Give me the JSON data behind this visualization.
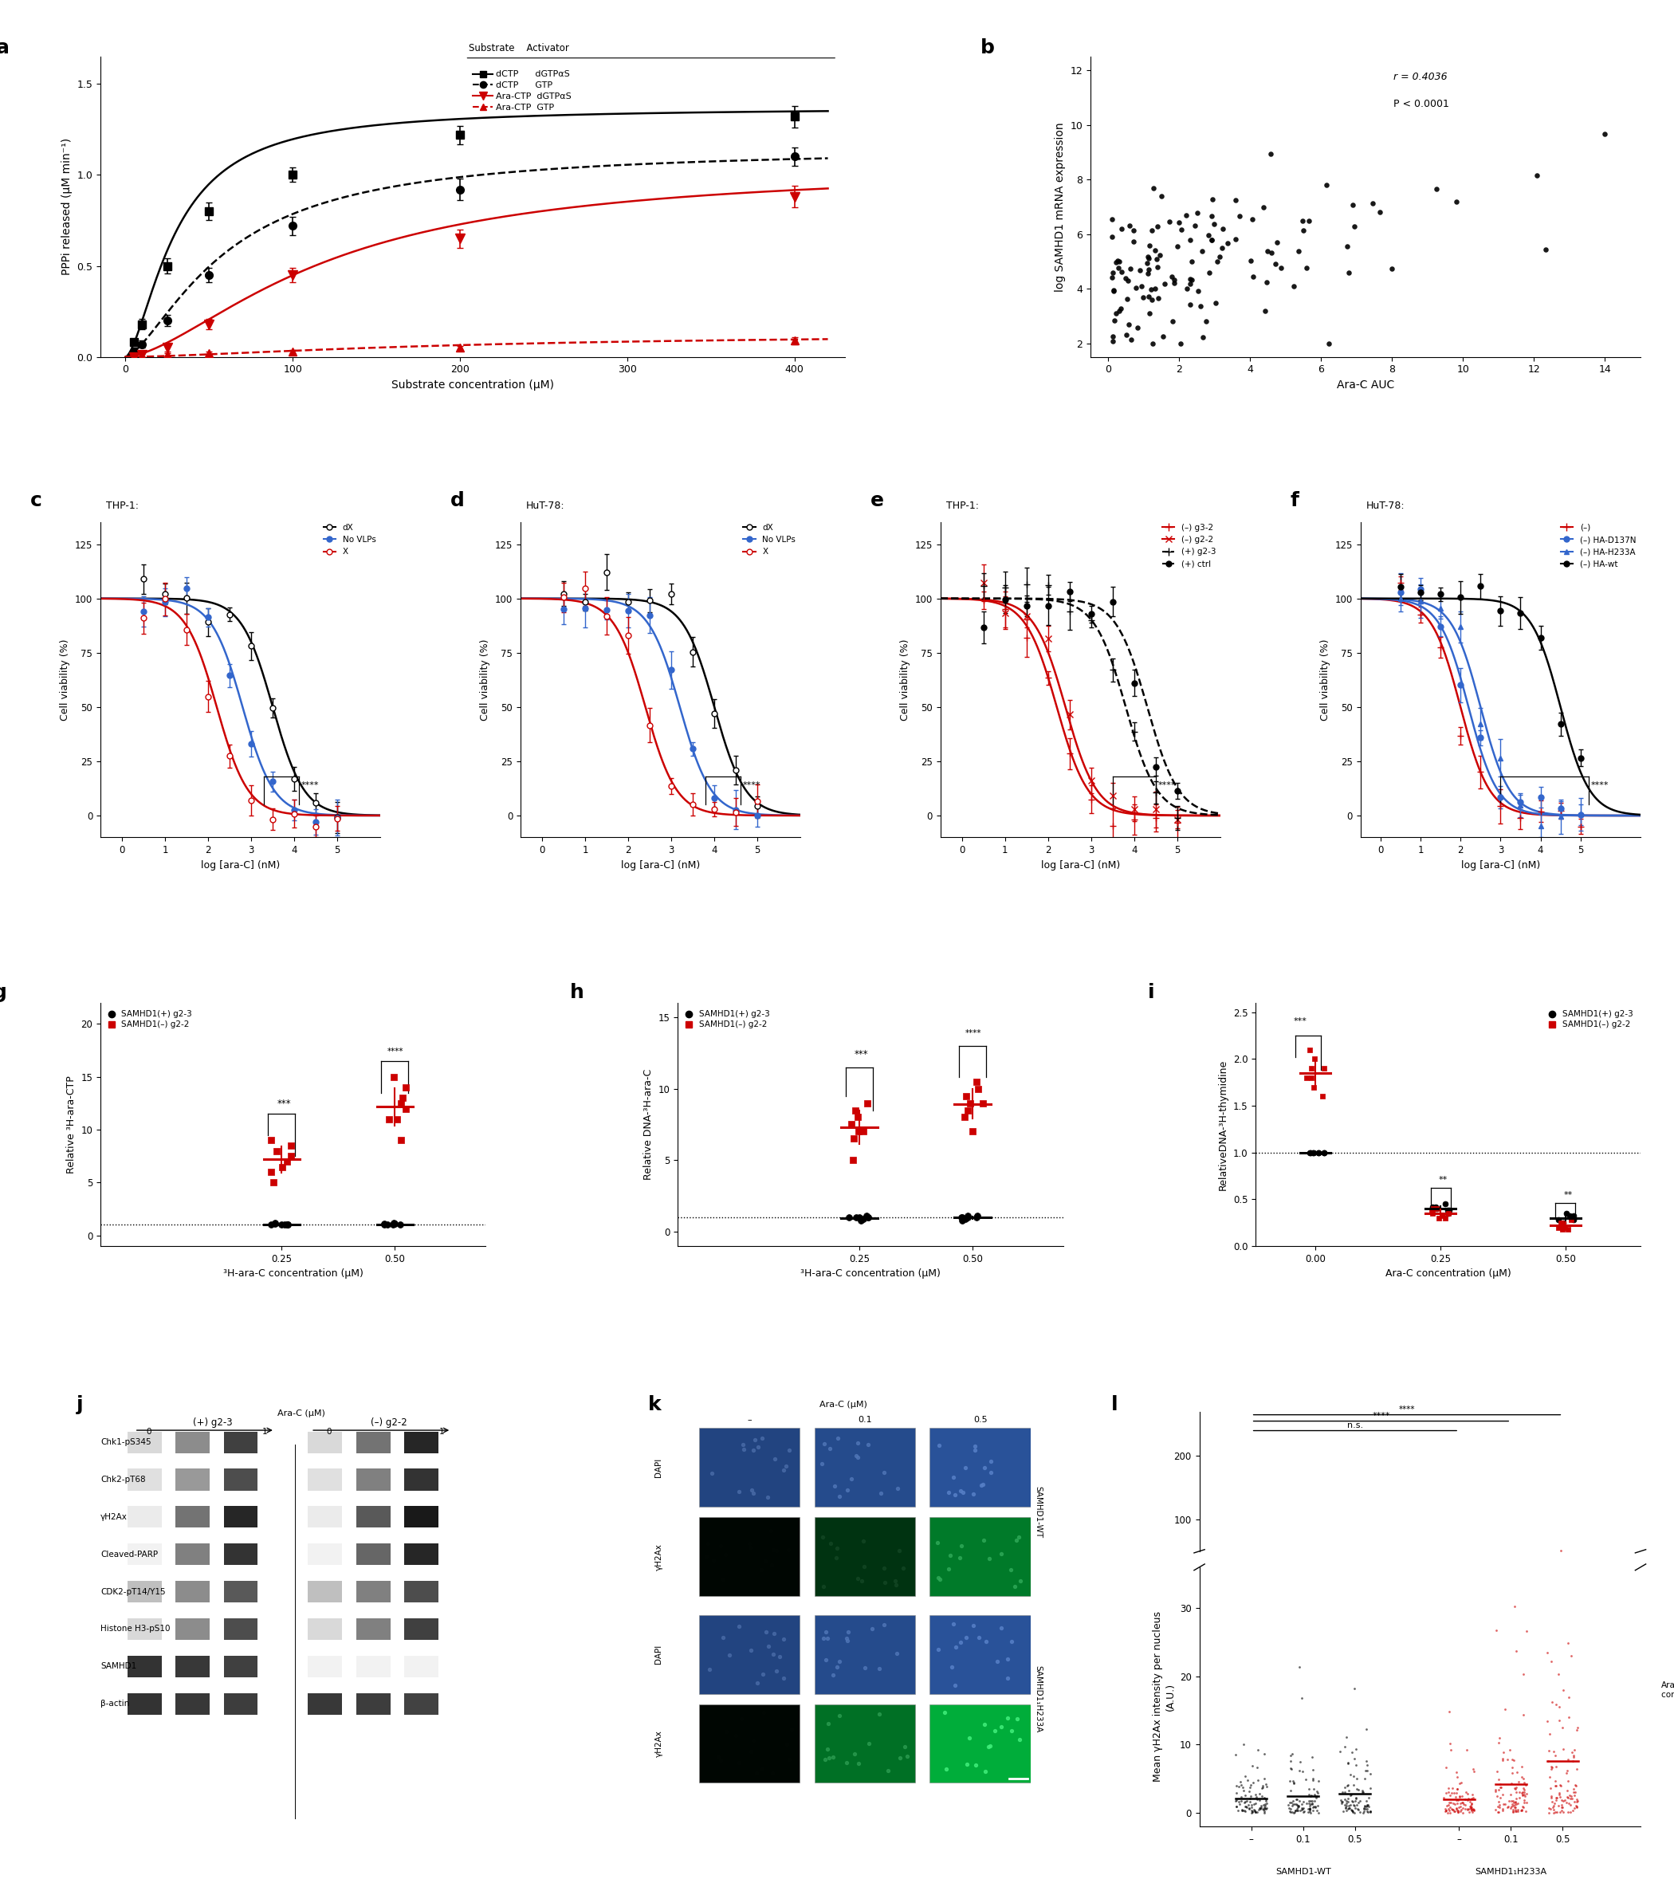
{
  "panel_a": {
    "xlabel": "Substrate concentration (μM)",
    "ylabel": "PPPi released (μM min⁻¹)",
    "xlim": [
      -15,
      430
    ],
    "ylim": [
      0.0,
      1.65
    ],
    "yticks": [
      0.0,
      0.5,
      1.0,
      1.5
    ],
    "xticks": [
      0,
      100,
      200,
      300,
      400
    ],
    "curves": {
      "dCTP_dGTPaS": {
        "x": [
          5,
          10,
          25,
          50,
          100,
          200,
          400
        ],
        "y": [
          0.08,
          0.18,
          0.5,
          0.8,
          1.0,
          1.22,
          1.32
        ],
        "yerr": [
          0.02,
          0.03,
          0.04,
          0.05,
          0.04,
          0.05,
          0.06
        ],
        "color": "black",
        "ls": "-",
        "marker": "s",
        "label": "dCTP      dGTPαS"
      },
      "dCTP_GTP": {
        "x": [
          5,
          10,
          25,
          50,
          100,
          200,
          400
        ],
        "y": [
          0.03,
          0.07,
          0.2,
          0.45,
          0.72,
          0.92,
          1.1
        ],
        "yerr": [
          0.02,
          0.02,
          0.03,
          0.04,
          0.05,
          0.06,
          0.05
        ],
        "color": "black",
        "ls": "--",
        "marker": "o",
        "label": "dCTP      GTP"
      },
      "AraCTP_dGTPaS": {
        "x": [
          5,
          10,
          25,
          50,
          100,
          200,
          400
        ],
        "y": [
          0.0,
          0.01,
          0.05,
          0.18,
          0.45,
          0.65,
          0.88
        ],
        "yerr": [
          0.01,
          0.01,
          0.02,
          0.03,
          0.04,
          0.05,
          0.06
        ],
        "color": "red",
        "ls": "-",
        "marker": "v",
        "label": "Ara-CTP  dGTPαS"
      },
      "AraCTP_GTP": {
        "x": [
          5,
          10,
          25,
          50,
          100,
          200,
          400
        ],
        "y": [
          0.0,
          0.0,
          0.01,
          0.02,
          0.03,
          0.05,
          0.09
        ],
        "yerr": [
          0.005,
          0.005,
          0.01,
          0.01,
          0.01,
          0.01,
          0.02
        ],
        "color": "red",
        "ls": "--",
        "marker": "^",
        "label": "Ara-CTP  GTP"
      }
    }
  },
  "panel_b": {
    "xlabel": "Ara-C AUC",
    "ylabel": "log SAMHD1 mRNA expression",
    "xlim": [
      -0.5,
      15
    ],
    "ylim": [
      1.5,
      12.5
    ],
    "xticks": [
      0,
      2,
      4,
      6,
      8,
      10,
      12,
      14
    ],
    "yticks": [
      2,
      4,
      6,
      8,
      10,
      12
    ],
    "r_value": "r = 0.4036",
    "p_value": "P < 0.0001"
  },
  "viability_xlim": [
    -0.5,
    6
  ],
  "viability_ylim": [
    -10,
    135
  ],
  "viability_yticks": [
    0,
    25,
    50,
    75,
    100,
    125
  ],
  "viability_xticks": [
    0,
    1,
    2,
    3,
    4,
    5
  ],
  "viability_xlabel": "log [ara-C] (nM)",
  "viability_ylabel": "Cell viability (%)",
  "colors": {
    "black": "#000000",
    "red": "#cc0000",
    "blue": "#3366cc",
    "dark_red": "#990000"
  }
}
